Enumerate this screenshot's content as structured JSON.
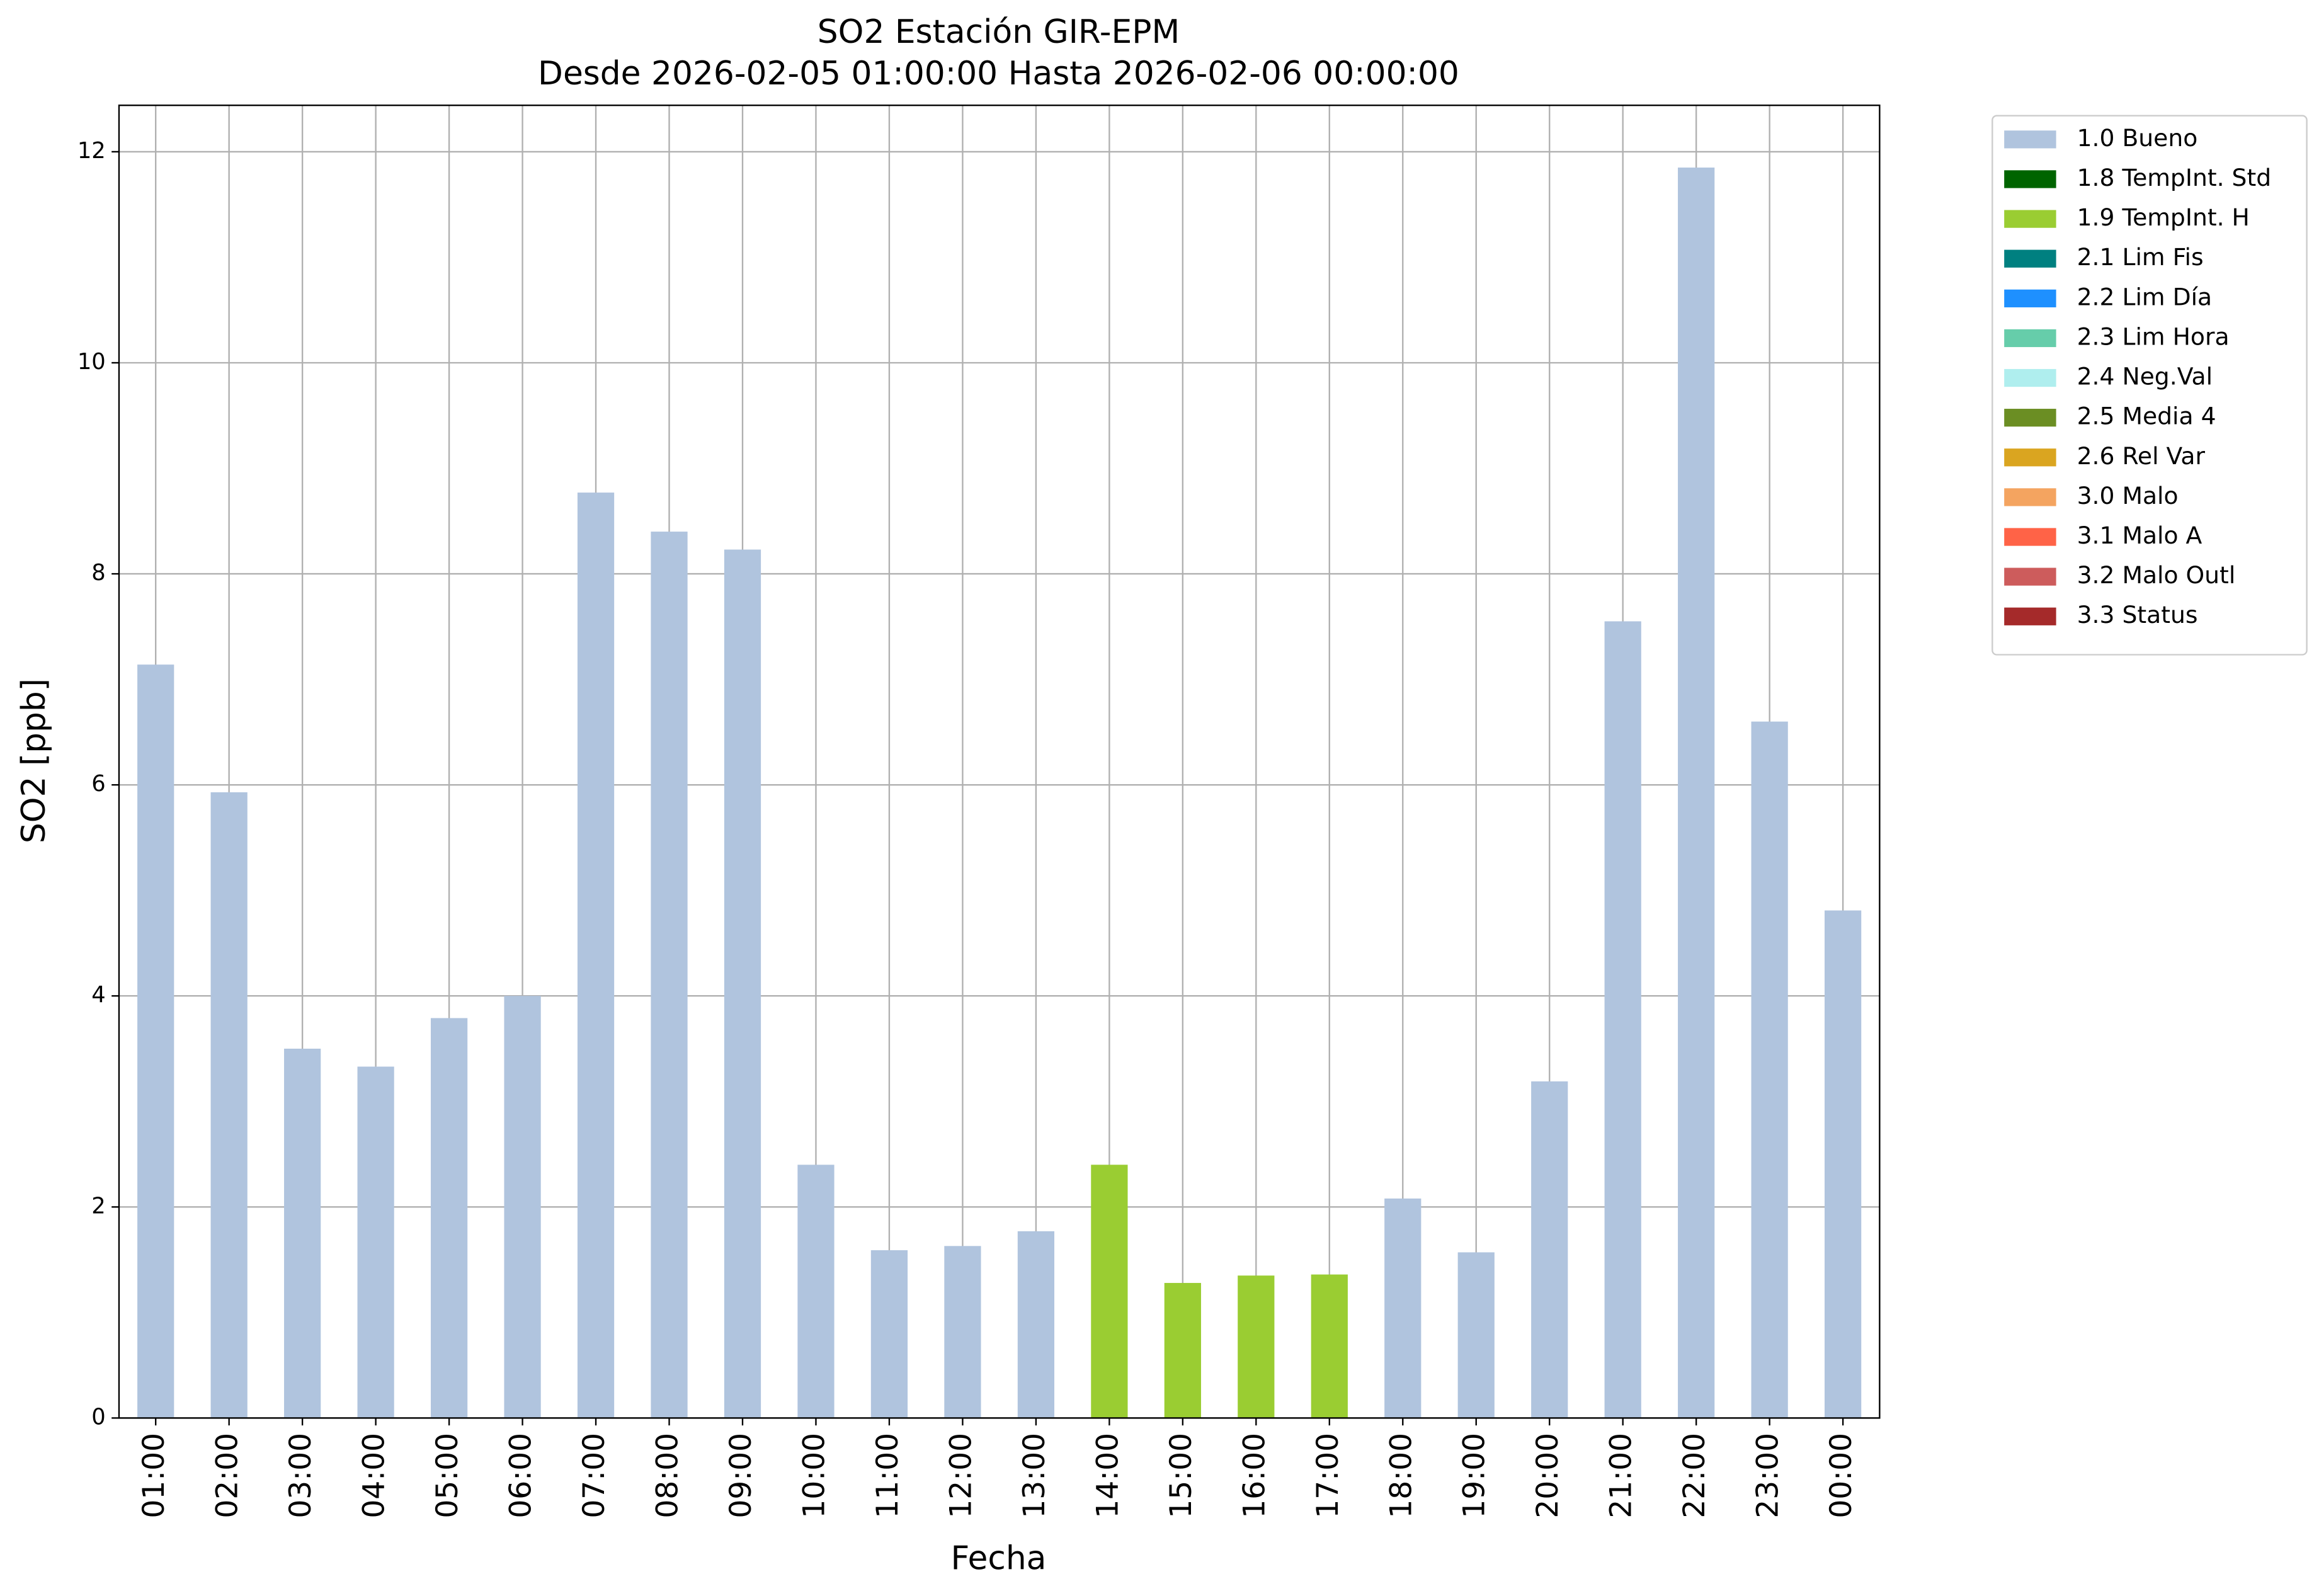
{
  "chart_data": {
    "type": "stacked_bar",
    "title": "SO2 Estación GIR-EPM",
    "subtitle": "Desde 2026-02-05 01:00:00 Hasta 2026-02-06 00:00:00",
    "x_label": "Fecha",
    "y_label": "SO2 [ppb]",
    "categories": [
      "01:00",
      "02:00",
      "03:00",
      "04:00",
      "05:00",
      "06:00",
      "07:00",
      "08:00",
      "09:00",
      "10:00",
      "11:00",
      "12:00",
      "13:00",
      "14:00",
      "15:00",
      "16:00",
      "17:00",
      "18:00",
      "19:00",
      "20:00",
      "21:00",
      "22:00",
      "23:00",
      "00:00"
    ],
    "series": [
      {
        "name": "1.0 Bueno",
        "color": "#b0c4de",
        "values": [
          7.14,
          5.93,
          3.5,
          3.33,
          3.79,
          4.0,
          8.77,
          8.4,
          8.23,
          2.4,
          1.59,
          1.63,
          1.77,
          null,
          null,
          null,
          null,
          2.08,
          1.57,
          3.19,
          7.55,
          11.85,
          6.6,
          4.81
        ]
      },
      {
        "name": "1.8 TempInt. Std",
        "color": "#006400",
        "values": [
          null,
          null,
          null,
          null,
          null,
          null,
          null,
          null,
          null,
          null,
          null,
          null,
          null,
          null,
          null,
          null,
          null,
          null,
          null,
          null,
          null,
          null,
          null,
          null
        ]
      },
      {
        "name": "1.9 TempInt. H",
        "color": "#9acd32",
        "values": [
          null,
          null,
          null,
          null,
          null,
          null,
          null,
          null,
          null,
          null,
          null,
          null,
          null,
          2.4,
          1.28,
          1.35,
          1.36,
          null,
          null,
          null,
          null,
          null,
          null,
          null
        ]
      },
      {
        "name": "2.1 Lim Fis",
        "color": "#008080",
        "values": [
          null,
          null,
          null,
          null,
          null,
          null,
          null,
          null,
          null,
          null,
          null,
          null,
          null,
          null,
          null,
          null,
          null,
          null,
          null,
          null,
          null,
          null,
          null,
          null
        ]
      },
      {
        "name": "2.2 Lim Día",
        "color": "#1e90ff",
        "values": [
          null,
          null,
          null,
          null,
          null,
          null,
          null,
          null,
          null,
          null,
          null,
          null,
          null,
          null,
          null,
          null,
          null,
          null,
          null,
          null,
          null,
          null,
          null,
          null
        ]
      },
      {
        "name": "2.3 Lim Hora",
        "color": "#66cdaa",
        "values": [
          null,
          null,
          null,
          null,
          null,
          null,
          null,
          null,
          null,
          null,
          null,
          null,
          null,
          null,
          null,
          null,
          null,
          null,
          null,
          null,
          null,
          null,
          null,
          null
        ]
      },
      {
        "name": "2.4 Neg.Val",
        "color": "#afeeee",
        "values": [
          null,
          null,
          null,
          null,
          null,
          null,
          null,
          null,
          null,
          null,
          null,
          null,
          null,
          null,
          null,
          null,
          null,
          null,
          null,
          null,
          null,
          null,
          null,
          null
        ]
      },
      {
        "name": "2.5 Media 4",
        "color": "#6b8e23",
        "values": [
          null,
          null,
          null,
          null,
          null,
          null,
          null,
          null,
          null,
          null,
          null,
          null,
          null,
          null,
          null,
          null,
          null,
          null,
          null,
          null,
          null,
          null,
          null,
          null
        ]
      },
      {
        "name": "2.6 Rel Var",
        "color": "#daa520",
        "values": [
          null,
          null,
          null,
          null,
          null,
          null,
          null,
          null,
          null,
          null,
          null,
          null,
          null,
          null,
          null,
          null,
          null,
          null,
          null,
          null,
          null,
          null,
          null,
          null
        ]
      },
      {
        "name": "3.0 Malo",
        "color": "#f4a460",
        "values": [
          null,
          null,
          null,
          null,
          null,
          null,
          null,
          null,
          null,
          null,
          null,
          null,
          null,
          null,
          null,
          null,
          null,
          null,
          null,
          null,
          null,
          null,
          null,
          null
        ]
      },
      {
        "name": "3.1 Malo A",
        "color": "#ff6347",
        "values": [
          null,
          null,
          null,
          null,
          null,
          null,
          null,
          null,
          null,
          null,
          null,
          null,
          null,
          null,
          null,
          null,
          null,
          null,
          null,
          null,
          null,
          null,
          null,
          null
        ]
      },
      {
        "name": "3.2 Malo Outl",
        "color": "#cd5c5c",
        "values": [
          null,
          null,
          null,
          null,
          null,
          null,
          null,
          null,
          null,
          null,
          null,
          null,
          null,
          null,
          null,
          null,
          null,
          null,
          null,
          null,
          null,
          null,
          null,
          null
        ]
      },
      {
        "name": "3.3 Status",
        "color": "#a52a2a",
        "values": [
          null,
          null,
          null,
          null,
          null,
          null,
          null,
          null,
          null,
          null,
          null,
          null,
          null,
          null,
          null,
          null,
          null,
          null,
          null,
          null,
          null,
          null,
          null,
          null
        ]
      }
    ],
    "ylim": [
      0,
      12.44
    ],
    "yticks": [
      0,
      2,
      4,
      6,
      8,
      10,
      12
    ],
    "grid": true,
    "legend": "outside-right"
  }
}
